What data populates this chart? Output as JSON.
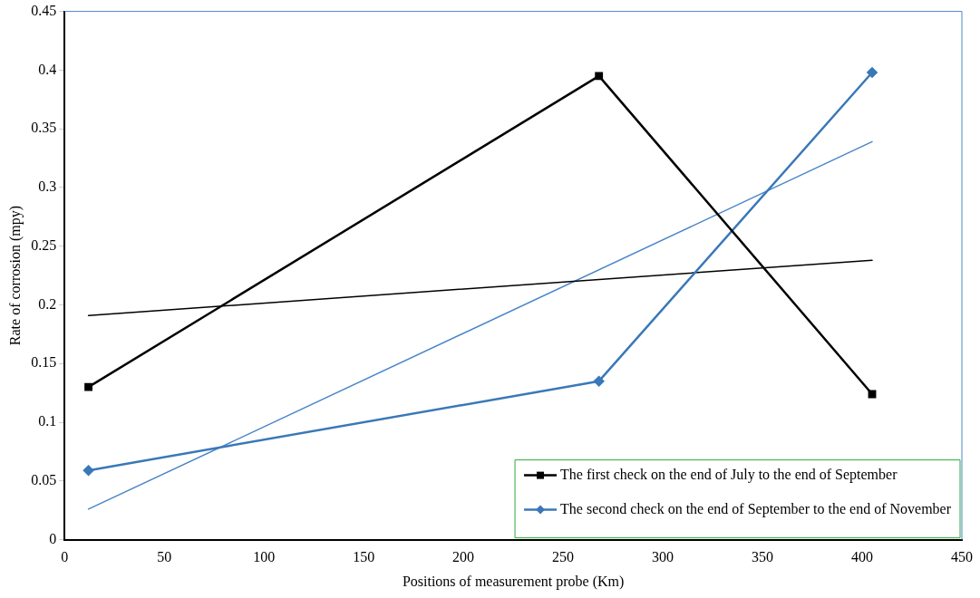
{
  "chart_data": {
    "type": "line",
    "xlabel": "Positions of measurement probe (Km)",
    "ylabel": "Rate of corrosion (mpy)",
    "xlim": [
      0,
      450
    ],
    "xticks": [
      0,
      50,
      100,
      150,
      200,
      250,
      300,
      350,
      400,
      450
    ],
    "ylim": [
      0,
      0.45
    ],
    "yticks": [
      0,
      0.05,
      0.1,
      0.15,
      0.2,
      0.25,
      0.3,
      0.35,
      0.4,
      0.45
    ],
    "grid": false,
    "legend": "bottom right",
    "series": [
      {
        "name": "The first check on the end of July to the end of September",
        "color": "#000000",
        "marker": "square",
        "x": [
          12,
          268,
          405
        ],
        "values": [
          0.13,
          0.395,
          0.124
        ]
      },
      {
        "name": "The second check on the end of September to the end of November",
        "color": "#3a78b8",
        "marker": "diamond",
        "x": [
          12,
          268,
          405
        ],
        "values": [
          0.059,
          0.135,
          0.398
        ]
      },
      {
        "type": "line",
        "color": "#000000",
        "marker": "none",
        "x": [
          12,
          405
        ],
        "values": [
          0.191,
          0.238
        ]
      },
      {
        "type": "line",
        "color": "#4a86c8",
        "marker": "none",
        "x": [
          12,
          405
        ],
        "values": [
          0.026,
          0.339
        ]
      }
    ]
  }
}
